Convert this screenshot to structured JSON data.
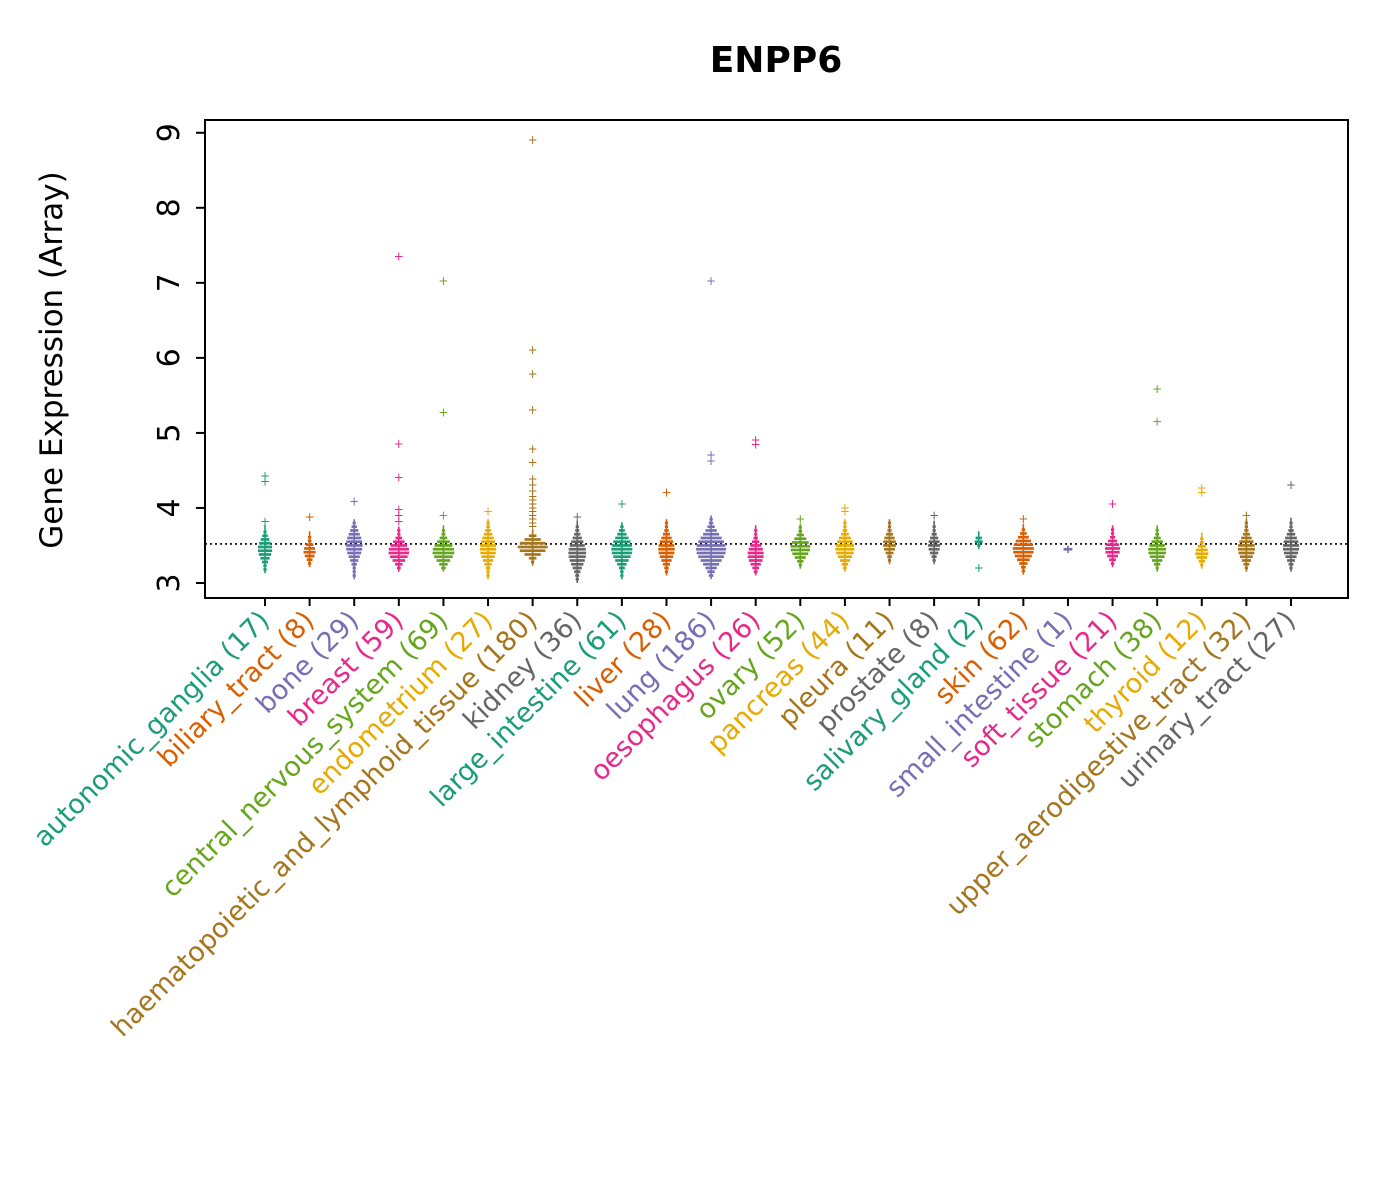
{
  "chart_data": {
    "type": "beeswarm-violin",
    "title": "ENPP6",
    "xlabel": "",
    "ylabel": "Gene Expression (Array)",
    "ylim": [
      2.8,
      9.17
    ],
    "yticks": [
      3,
      4,
      5,
      6,
      7,
      8,
      9
    ],
    "reference_line": 3.52,
    "grid": false,
    "legend": "none",
    "palette_name": "Dark2",
    "categories": [
      {
        "label": "autonomic_ganglia",
        "n": 17,
        "color": "#1B9E77",
        "blob": {
          "min": 3.18,
          "max": 3.72,
          "center": 3.45
        },
        "outliers": [
          3.82,
          4.35,
          4.42
        ]
      },
      {
        "label": "biliary_tract",
        "n": 8,
        "color": "#D95F02",
        "blob": {
          "min": 3.26,
          "max": 3.64,
          "center": 3.42
        },
        "outliers": [
          3.88
        ]
      },
      {
        "label": "bone",
        "n": 29,
        "color": "#7570B3",
        "blob": {
          "min": 3.1,
          "max": 3.8,
          "center": 3.5
        },
        "outliers": [
          4.08
        ]
      },
      {
        "label": "breast",
        "n": 59,
        "color": "#E7298A",
        "blob": {
          "min": 3.2,
          "max": 3.7,
          "center": 3.42
        },
        "outliers": [
          3.82,
          3.9,
          3.98,
          4.4,
          4.85,
          7.35
        ]
      },
      {
        "label": "central_nervous_system",
        "n": 69,
        "color": "#66A61E",
        "blob": {
          "min": 3.2,
          "max": 3.72,
          "center": 3.42
        },
        "outliers": [
          3.9,
          5.27,
          7.02
        ]
      },
      {
        "label": "endometrium",
        "n": 27,
        "color": "#E6AB02",
        "blob": {
          "min": 3.1,
          "max": 3.8,
          "center": 3.46
        },
        "outliers": [
          3.95
        ]
      },
      {
        "label": "haematopoietic_and_lymphoid_tissue",
        "n": 180,
        "color": "#A6761D",
        "blob": {
          "min": 3.28,
          "max": 3.66,
          "center": 3.48
        },
        "outliers": [
          3.75,
          3.8,
          3.85,
          3.9,
          3.95,
          4.0,
          4.05,
          4.1,
          4.15,
          4.22,
          4.3,
          4.38,
          4.6,
          4.78,
          5.3,
          5.78,
          6.1,
          8.9
        ]
      },
      {
        "label": "kidney",
        "n": 36,
        "color": "#666666",
        "blob": {
          "min": 3.05,
          "max": 3.78,
          "center": 3.4
        },
        "outliers": [
          3.88
        ]
      },
      {
        "label": "large_intestine",
        "n": 61,
        "color": "#1B9E77",
        "blob": {
          "min": 3.1,
          "max": 3.76,
          "center": 3.45
        },
        "outliers": [
          4.05
        ]
      },
      {
        "label": "liver",
        "n": 28,
        "color": "#D95F02",
        "blob": {
          "min": 3.15,
          "max": 3.8,
          "center": 3.45
        },
        "outliers": [
          4.2
        ]
      },
      {
        "label": "lung",
        "n": 186,
        "color": "#7570B3",
        "blob": {
          "min": 3.1,
          "max": 3.85,
          "center": 3.45
        },
        "outliers": [
          4.62,
          4.7,
          7.02
        ]
      },
      {
        "label": "oesophagus",
        "n": 26,
        "color": "#E7298A",
        "blob": {
          "min": 3.15,
          "max": 3.72,
          "center": 3.38
        },
        "outliers": [
          4.84,
          4.9
        ]
      },
      {
        "label": "ovary",
        "n": 52,
        "color": "#66A61E",
        "blob": {
          "min": 3.24,
          "max": 3.74,
          "center": 3.47
        },
        "outliers": [
          3.85
        ]
      },
      {
        "label": "pancreas",
        "n": 44,
        "color": "#E6AB02",
        "blob": {
          "min": 3.2,
          "max": 3.8,
          "center": 3.46
        },
        "outliers": [
          3.95,
          4.0
        ]
      },
      {
        "label": "pleura",
        "n": 11,
        "color": "#A6761D",
        "blob": {
          "min": 3.3,
          "max": 3.8,
          "center": 3.52
        },
        "outliers": []
      },
      {
        "label": "prostate",
        "n": 8,
        "color": "#666666",
        "blob": {
          "min": 3.3,
          "max": 3.78,
          "center": 3.5
        },
        "outliers": [
          3.9
        ]
      },
      {
        "label": "salivary_gland",
        "n": 2,
        "color": "#1B9E77",
        "blob": {
          "min": 3.5,
          "max": 3.64,
          "center": 3.57
        },
        "outliers": [
          3.2
        ]
      },
      {
        "label": "skin",
        "n": 62,
        "color": "#D95F02",
        "blob": {
          "min": 3.16,
          "max": 3.74,
          "center": 3.45
        },
        "outliers": [
          3.85
        ]
      },
      {
        "label": "small_intestine",
        "n": 1,
        "color": "#7570B3",
        "blob": {
          "min": 3.45,
          "max": 3.45,
          "center": 3.45
        },
        "outliers": []
      },
      {
        "label": "soft_tissue",
        "n": 21,
        "color": "#E7298A",
        "blob": {
          "min": 3.26,
          "max": 3.72,
          "center": 3.45
        },
        "outliers": [
          4.05
        ]
      },
      {
        "label": "stomach",
        "n": 38,
        "color": "#66A61E",
        "blob": {
          "min": 3.2,
          "max": 3.72,
          "center": 3.43
        },
        "outliers": [
          5.15,
          5.58
        ]
      },
      {
        "label": "thyroid",
        "n": 12,
        "color": "#E6AB02",
        "blob": {
          "min": 3.24,
          "max": 3.62,
          "center": 3.4
        },
        "outliers": [
          4.2,
          4.26
        ]
      },
      {
        "label": "upper_aerodigestive_tract",
        "n": 32,
        "color": "#A6761D",
        "blob": {
          "min": 3.2,
          "max": 3.8,
          "center": 3.46
        },
        "outliers": [
          3.9
        ]
      },
      {
        "label": "urinary_tract",
        "n": 27,
        "color": "#666666",
        "blob": {
          "min": 3.2,
          "max": 3.82,
          "center": 3.48
        },
        "outliers": [
          4.3
        ]
      }
    ]
  }
}
